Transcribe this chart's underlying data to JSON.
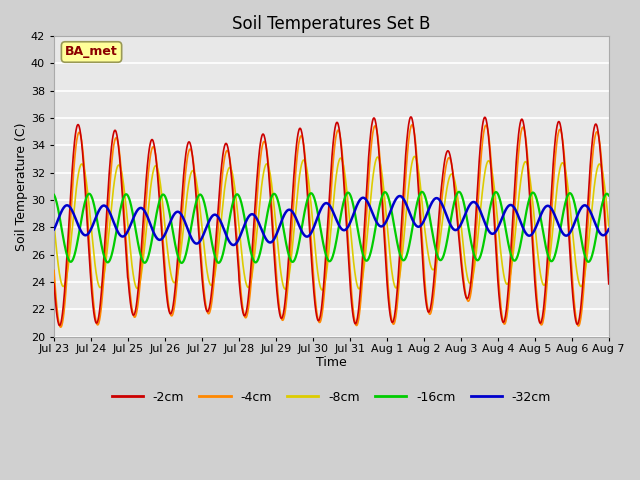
{
  "title": "Soil Temperatures Set B",
  "xlabel": "Time",
  "ylabel": "Soil Temperature (C)",
  "ylim": [
    20,
    42
  ],
  "yticks": [
    20,
    22,
    24,
    26,
    28,
    30,
    32,
    34,
    36,
    38,
    40,
    42
  ],
  "xtick_labels": [
    "Jul 23",
    "Jul 24",
    "Jul 25",
    "Jul 26",
    "Jul 27",
    "Jul 28",
    "Jul 29",
    "Jul 30",
    "Jul 31",
    "Aug 1",
    "Aug 2",
    "Aug 3",
    "Aug 4",
    "Aug 5",
    "Aug 6",
    "Aug 7"
  ],
  "colors": {
    "-2cm": "#cc0000",
    "-4cm": "#ff8800",
    "-8cm": "#ddcc00",
    "-16cm": "#00cc00",
    "-32cm": "#0000cc"
  },
  "annotation_text": "BA_met",
  "annotation_dark_red": "#8B0000",
  "annotation_bg": "#ffff99",
  "annotation_border": "#999955",
  "fig_bg": "#d0d0d0",
  "plot_bg": "#e8e8e8",
  "title_fontsize": 12,
  "axis_label_fontsize": 9,
  "tick_fontsize": 8,
  "legend_fontsize": 9,
  "line_width": 1.2
}
